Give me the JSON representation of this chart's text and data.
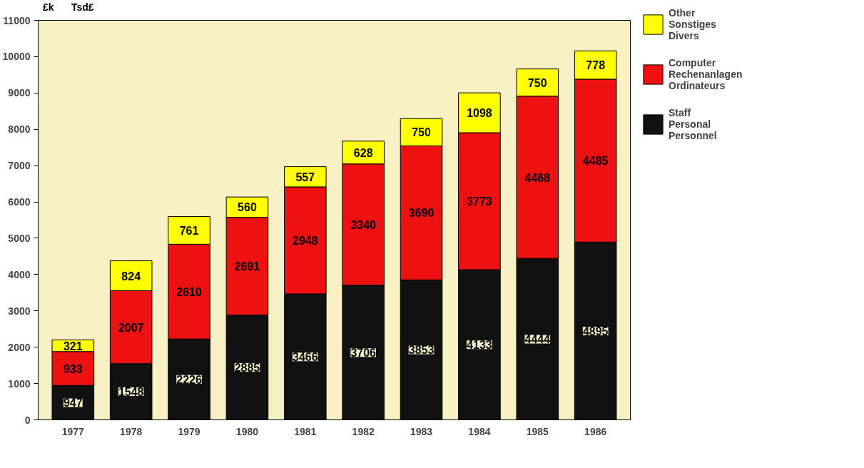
{
  "chart_data": {
    "type": "bar",
    "stacked": true,
    "annotations": [
      "£k",
      "Tsd£"
    ],
    "categories": [
      "1977",
      "1978",
      "1979",
      "1980",
      "1981",
      "1982",
      "1983",
      "1984",
      "1985",
      "1986"
    ],
    "series": [
      {
        "name": "Staff\nPersonal\nPersonnel",
        "color": "#111111",
        "values": [
          947,
          1548,
          2226,
          2885,
          3466,
          3706,
          3853,
          4133,
          4444,
          4895
        ]
      },
      {
        "name": "Computer\nRechenanlagen\nOrdinateurs",
        "color": "#ee1111",
        "values": [
          933,
          2007,
          2610,
          2691,
          2948,
          3340,
          3690,
          3773,
          4468,
          4485
        ]
      },
      {
        "name": "Other\nSonstiges\nDivers",
        "color": "#ffff00",
        "values": [
          321,
          824,
          761,
          560,
          557,
          628,
          750,
          1098,
          750,
          778
        ]
      }
    ],
    "ylim": [
      0,
      11000
    ],
    "yticks": [
      0,
      1000,
      2000,
      3000,
      4000,
      5000,
      6000,
      7000,
      8000,
      9000,
      10000,
      11000
    ],
    "grid": false,
    "legend": "right",
    "data_labels": true
  }
}
